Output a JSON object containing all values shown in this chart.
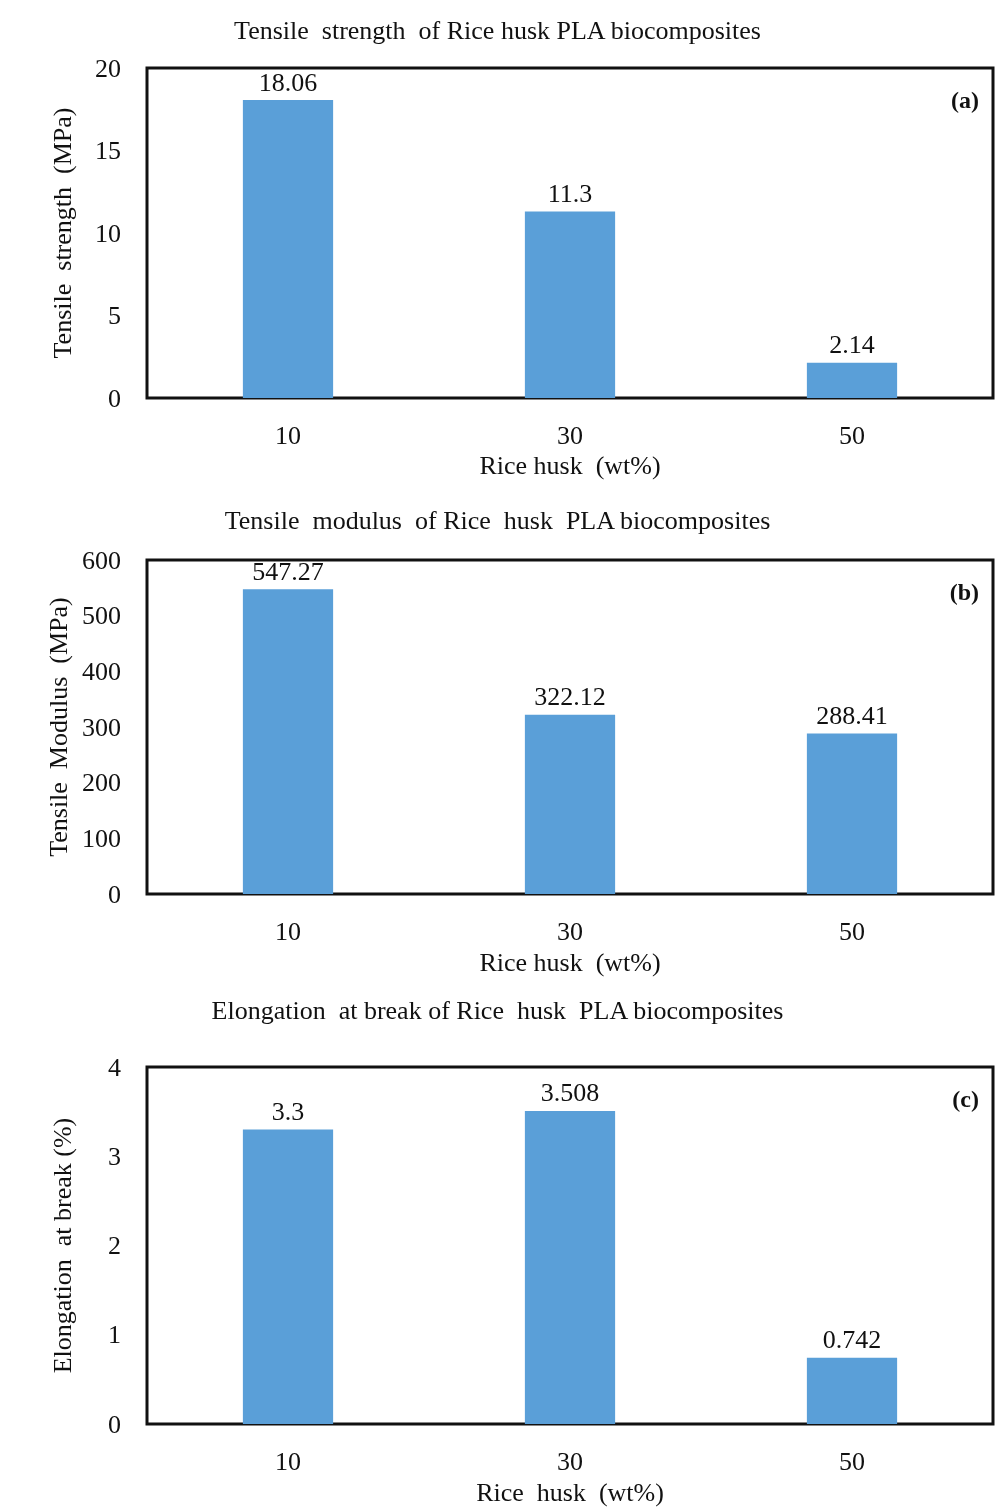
{
  "chart_data": [
    {
      "type": "bar",
      "title": "Tensile  strength  of Rice husk PLA biocomposites",
      "xlabel": "Rice husk  (wt%)",
      "ylabel": "Tensile  strength  (MPa)",
      "categories": [
        "10",
        "30",
        "50"
      ],
      "values": [
        18.06,
        11.3,
        2.14
      ],
      "color": "#5a9fd8",
      "ylim": [
        0,
        20
      ],
      "yticks": [
        0,
        5,
        10,
        15,
        20
      ],
      "grid": false,
      "data_labels": true,
      "annotations": [
        "(a)"
      ]
    },
    {
      "type": "bar",
      "title": "Tensile  modulus  of Rice  husk  PLA biocomposites",
      "xlabel": "Rice husk  (wt%)",
      "ylabel": "Tensile  Modulus  (MPa)",
      "categories": [
        "10",
        "30",
        "50"
      ],
      "values": [
        547.27,
        322.12,
        288.41
      ],
      "color": "#5a9fd8",
      "ylim": [
        0,
        600
      ],
      "yticks": [
        0,
        100,
        200,
        300,
        400,
        500,
        600
      ],
      "grid": false,
      "data_labels": true,
      "annotations": [
        "(b)"
      ]
    },
    {
      "type": "bar",
      "title": "Elongation  at break of Rice  husk  PLA biocomposites",
      "xlabel": "Rice  husk  (wt%)",
      "ylabel": "Elongation  at break (%)",
      "categories": [
        "10",
        "30",
        "50"
      ],
      "values": [
        3.3,
        3.508,
        0.742
      ],
      "color": "#5a9fd8",
      "ylim": [
        0,
        4
      ],
      "yticks": [
        0,
        1,
        2,
        3,
        4
      ],
      "grid": false,
      "data_labels": true,
      "annotations": [
        "(c)"
      ]
    }
  ]
}
